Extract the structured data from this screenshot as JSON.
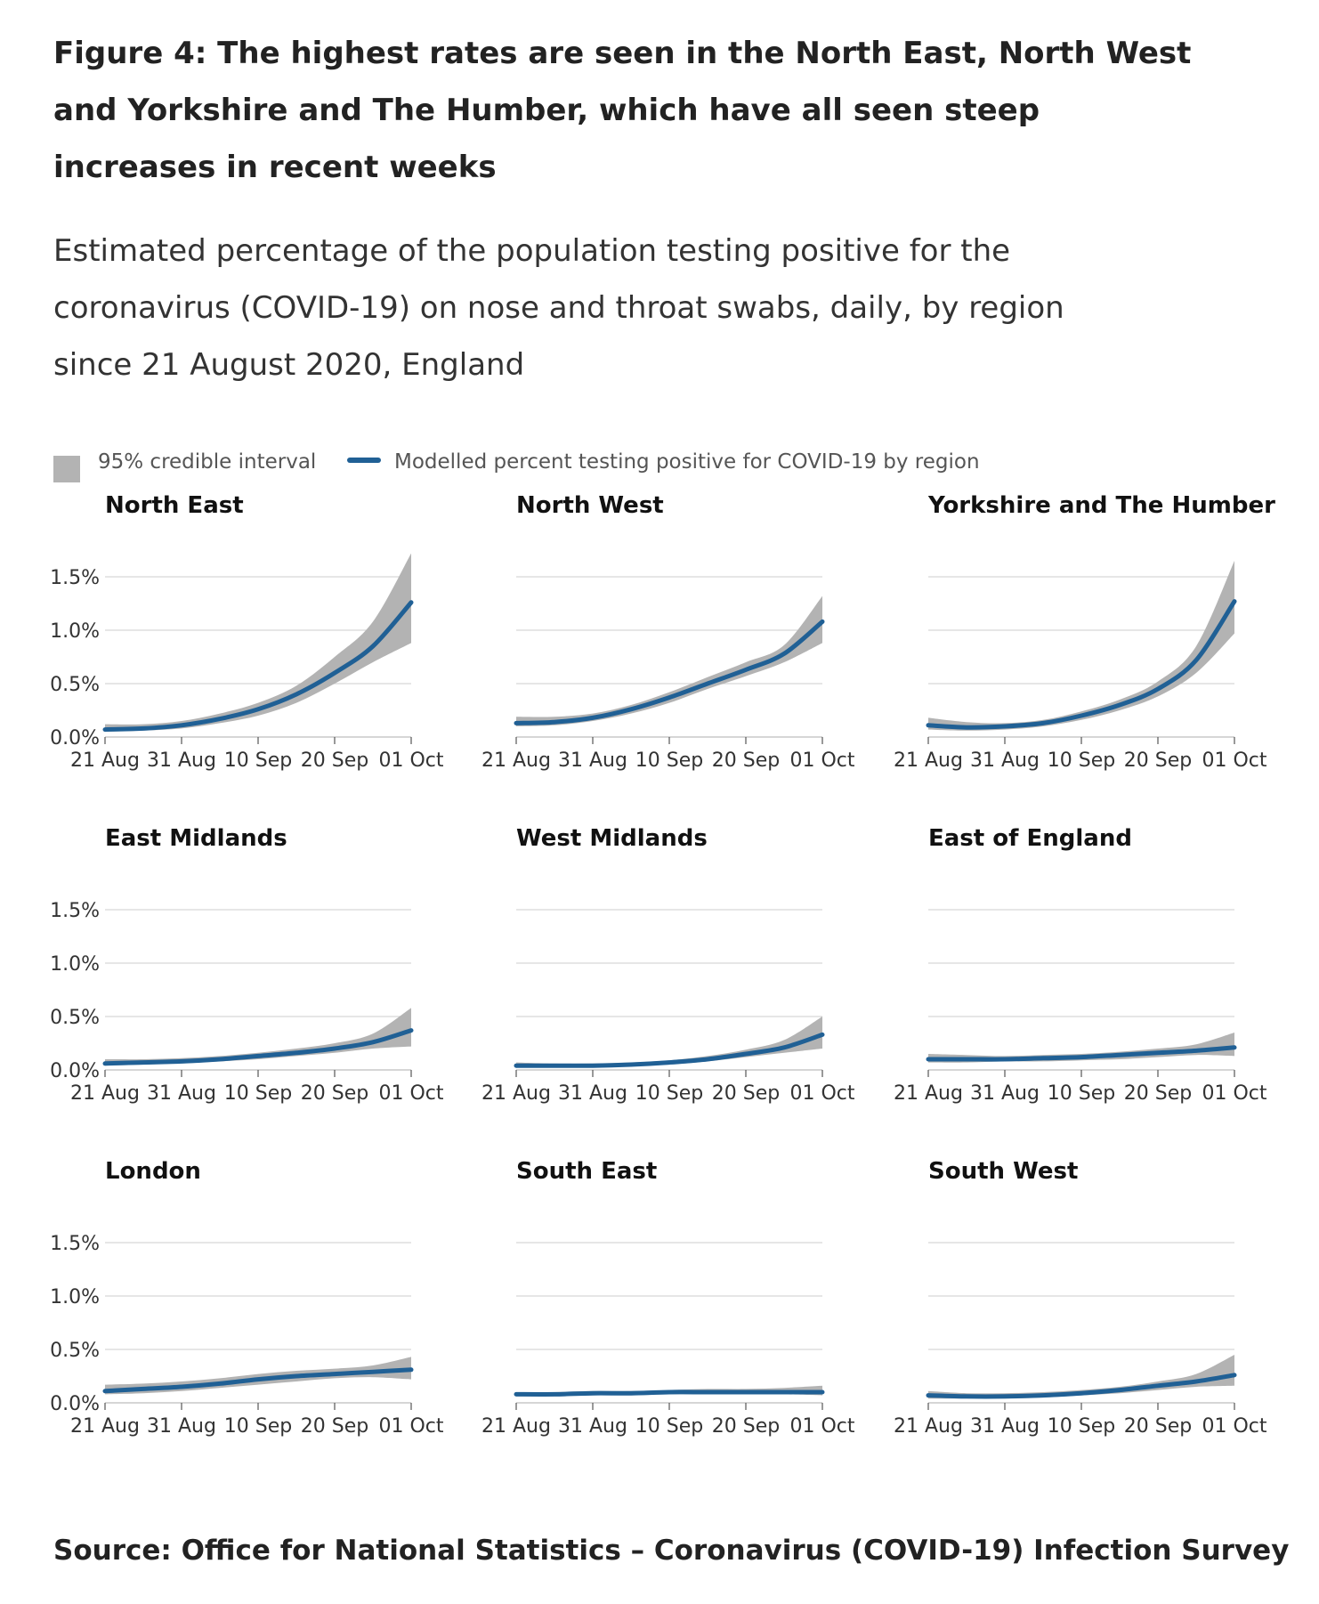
{
  "title": "Figure 4: The highest rates are seen in the North East, North West and Yorkshire and The Humber, which have all seen steep increases in recent weeks",
  "subtitle": "Estimated percentage of the population testing positive for the coronavirus (COVID-19) on nose and throat swabs, daily, by region since 21 August 2020, England",
  "legend": {
    "interval_label": "95% credible interval",
    "line_label": "Modelled percent testing positive for COVID-19 by region",
    "interval_color": "#b3b3b3",
    "line_color": "#206095"
  },
  "source": "Source: Office for National Statistics – Coronavirus (COVID-19) Infection Survey",
  "chart_data": [
    {
      "type": "area",
      "title": "North East",
      "x": [
        "21 Aug",
        "26 Aug",
        "31 Aug",
        "05 Sep",
        "10 Sep",
        "15 Sep",
        "20 Sep",
        "25 Sep",
        "01 Oct"
      ],
      "values": [
        0.07,
        0.08,
        0.11,
        0.17,
        0.26,
        0.4,
        0.6,
        0.85,
        1.26
      ],
      "lower": [
        0.05,
        0.06,
        0.08,
        0.13,
        0.2,
        0.32,
        0.5,
        0.7,
        0.88
      ],
      "upper": [
        0.12,
        0.12,
        0.15,
        0.22,
        0.32,
        0.48,
        0.75,
        1.08,
        1.72
      ],
      "xticks": [
        "21 Aug",
        "31 Aug",
        "10 Sep",
        "20 Sep",
        "01 Oct"
      ],
      "yticks": [
        "0.0%",
        "0.5%",
        "1.0%",
        "1.5%"
      ],
      "ylim": [
        0,
        1.5
      ],
      "show_yaxis": true
    },
    {
      "type": "area",
      "title": "North West",
      "x": [
        "21 Aug",
        "26 Aug",
        "31 Aug",
        "05 Sep",
        "10 Sep",
        "15 Sep",
        "20 Sep",
        "25 Sep",
        "01 Oct"
      ],
      "values": [
        0.13,
        0.14,
        0.18,
        0.26,
        0.37,
        0.5,
        0.63,
        0.78,
        1.08
      ],
      "lower": [
        0.1,
        0.11,
        0.15,
        0.22,
        0.32,
        0.45,
        0.57,
        0.7,
        0.88
      ],
      "upper": [
        0.19,
        0.19,
        0.22,
        0.3,
        0.42,
        0.56,
        0.7,
        0.86,
        1.32
      ],
      "xticks": [
        "21 Aug",
        "31 Aug",
        "10 Sep",
        "20 Sep",
        "01 Oct"
      ],
      "yticks": [
        "0.0%",
        "0.5%",
        "1.0%",
        "1.5%"
      ],
      "ylim": [
        0,
        1.5
      ],
      "show_yaxis": false
    },
    {
      "type": "area",
      "title": "Yorkshire and The Humber",
      "x": [
        "21 Aug",
        "26 Aug",
        "31 Aug",
        "05 Sep",
        "10 Sep",
        "15 Sep",
        "20 Sep",
        "25 Sep",
        "01 Oct"
      ],
      "values": [
        0.11,
        0.09,
        0.1,
        0.13,
        0.2,
        0.3,
        0.45,
        0.72,
        1.27
      ],
      "lower": [
        0.07,
        0.06,
        0.07,
        0.1,
        0.16,
        0.25,
        0.38,
        0.6,
        0.97
      ],
      "upper": [
        0.18,
        0.14,
        0.13,
        0.16,
        0.24,
        0.35,
        0.52,
        0.85,
        1.65
      ],
      "xticks": [
        "21 Aug",
        "31 Aug",
        "10 Sep",
        "20 Sep",
        "01 Oct"
      ],
      "yticks": [
        "0.0%",
        "0.5%",
        "1.0%",
        "1.5%"
      ],
      "ylim": [
        0,
        1.5
      ],
      "show_yaxis": false
    },
    {
      "type": "area",
      "title": "East Midlands",
      "x": [
        "21 Aug",
        "26 Aug",
        "31 Aug",
        "05 Sep",
        "10 Sep",
        "15 Sep",
        "20 Sep",
        "25 Sep",
        "01 Oct"
      ],
      "values": [
        0.06,
        0.07,
        0.08,
        0.1,
        0.13,
        0.16,
        0.2,
        0.26,
        0.37
      ],
      "lower": [
        0.04,
        0.05,
        0.06,
        0.08,
        0.1,
        0.13,
        0.16,
        0.2,
        0.22
      ],
      "upper": [
        0.1,
        0.1,
        0.11,
        0.13,
        0.16,
        0.2,
        0.25,
        0.34,
        0.58
      ],
      "xticks": [
        "21 Aug",
        "31 Aug",
        "10 Sep",
        "20 Sep",
        "01 Oct"
      ],
      "yticks": [
        "0.0%",
        "0.5%",
        "1.0%",
        "1.5%"
      ],
      "ylim": [
        0,
        1.5
      ],
      "show_yaxis": true
    },
    {
      "type": "area",
      "title": "West Midlands",
      "x": [
        "21 Aug",
        "26 Aug",
        "31 Aug",
        "05 Sep",
        "10 Sep",
        "15 Sep",
        "20 Sep",
        "25 Sep",
        "01 Oct"
      ],
      "values": [
        0.04,
        0.04,
        0.04,
        0.05,
        0.07,
        0.1,
        0.15,
        0.21,
        0.33
      ],
      "lower": [
        0.02,
        0.03,
        0.03,
        0.04,
        0.05,
        0.08,
        0.12,
        0.16,
        0.2
      ],
      "upper": [
        0.07,
        0.06,
        0.06,
        0.07,
        0.09,
        0.13,
        0.19,
        0.28,
        0.5
      ],
      "xticks": [
        "21 Aug",
        "31 Aug",
        "10 Sep",
        "20 Sep",
        "01 Oct"
      ],
      "yticks": [
        "0.0%",
        "0.5%",
        "1.0%",
        "1.5%"
      ],
      "ylim": [
        0,
        1.5
      ],
      "show_yaxis": false
    },
    {
      "type": "area",
      "title": "East of England",
      "x": [
        "21 Aug",
        "26 Aug",
        "31 Aug",
        "05 Sep",
        "10 Sep",
        "15 Sep",
        "20 Sep",
        "25 Sep",
        "01 Oct"
      ],
      "values": [
        0.1,
        0.1,
        0.1,
        0.11,
        0.12,
        0.14,
        0.16,
        0.18,
        0.21
      ],
      "lower": [
        0.07,
        0.07,
        0.08,
        0.08,
        0.09,
        0.1,
        0.12,
        0.14,
        0.13
      ],
      "upper": [
        0.15,
        0.14,
        0.13,
        0.14,
        0.15,
        0.17,
        0.2,
        0.24,
        0.35
      ],
      "xticks": [
        "21 Aug",
        "31 Aug",
        "10 Sep",
        "20 Sep",
        "01 Oct"
      ],
      "yticks": [
        "0.0%",
        "0.5%",
        "1.0%",
        "1.5%"
      ],
      "ylim": [
        0,
        1.5
      ],
      "show_yaxis": false
    },
    {
      "type": "area",
      "title": "London",
      "x": [
        "21 Aug",
        "26 Aug",
        "31 Aug",
        "05 Sep",
        "10 Sep",
        "15 Sep",
        "20 Sep",
        "25 Sep",
        "01 Oct"
      ],
      "values": [
        0.11,
        0.13,
        0.15,
        0.18,
        0.22,
        0.25,
        0.27,
        0.29,
        0.31
      ],
      "lower": [
        0.08,
        0.09,
        0.11,
        0.14,
        0.17,
        0.2,
        0.23,
        0.24,
        0.22
      ],
      "upper": [
        0.17,
        0.18,
        0.2,
        0.23,
        0.27,
        0.3,
        0.32,
        0.35,
        0.43
      ],
      "xticks": [
        "21 Aug",
        "31 Aug",
        "10 Sep",
        "20 Sep",
        "01 Oct"
      ],
      "yticks": [
        "0.0%",
        "0.5%",
        "1.0%",
        "1.5%"
      ],
      "ylim": [
        0,
        1.5
      ],
      "show_yaxis": true
    },
    {
      "type": "area",
      "title": "South East",
      "x": [
        "21 Aug",
        "26 Aug",
        "31 Aug",
        "05 Sep",
        "10 Sep",
        "15 Sep",
        "20 Sep",
        "25 Sep",
        "01 Oct"
      ],
      "values": [
        0.08,
        0.08,
        0.09,
        0.09,
        0.1,
        0.1,
        0.1,
        0.1,
        0.1
      ],
      "lower": [
        0.06,
        0.06,
        0.07,
        0.07,
        0.08,
        0.08,
        0.08,
        0.08,
        0.07
      ],
      "upper": [
        0.1,
        0.1,
        0.11,
        0.11,
        0.12,
        0.13,
        0.13,
        0.14,
        0.16
      ],
      "xticks": [
        "21 Aug",
        "31 Aug",
        "10 Sep",
        "20 Sep",
        "01 Oct"
      ],
      "yticks": [
        "0.0%",
        "0.5%",
        "1.0%",
        "1.5%"
      ],
      "ylim": [
        0,
        1.5
      ],
      "show_yaxis": false
    },
    {
      "type": "area",
      "title": "South West",
      "x": [
        "21 Aug",
        "26 Aug",
        "31 Aug",
        "05 Sep",
        "10 Sep",
        "15 Sep",
        "20 Sep",
        "25 Sep",
        "01 Oct"
      ],
      "values": [
        0.07,
        0.06,
        0.06,
        0.07,
        0.09,
        0.12,
        0.16,
        0.2,
        0.26
      ],
      "lower": [
        0.04,
        0.04,
        0.04,
        0.05,
        0.07,
        0.09,
        0.12,
        0.15,
        0.16
      ],
      "upper": [
        0.11,
        0.09,
        0.09,
        0.1,
        0.12,
        0.15,
        0.2,
        0.27,
        0.45
      ],
      "xticks": [
        "21 Aug",
        "31 Aug",
        "10 Sep",
        "20 Sep",
        "01 Oct"
      ],
      "yticks": [
        "0.0%",
        "0.5%",
        "1.0%",
        "1.5%"
      ],
      "ylim": [
        0,
        1.5
      ],
      "show_yaxis": false
    }
  ]
}
